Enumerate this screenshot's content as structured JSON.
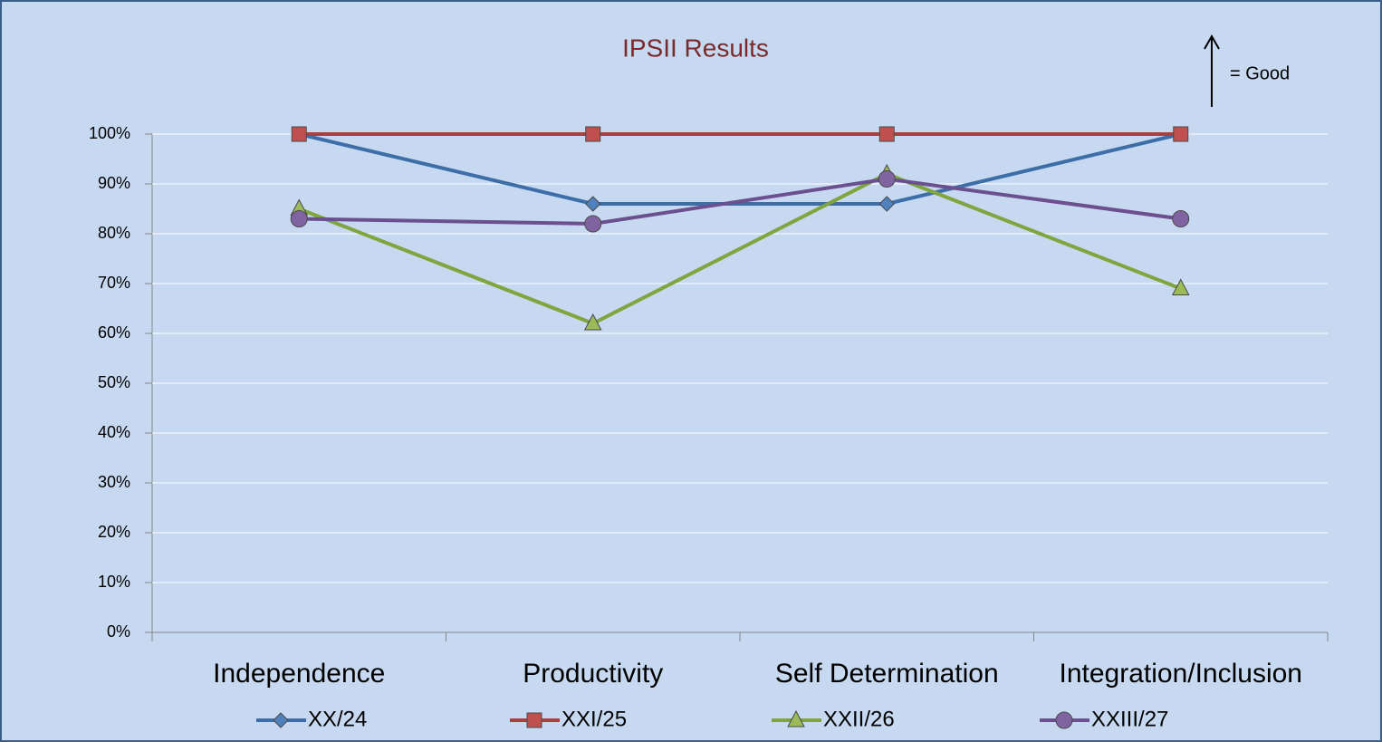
{
  "chart_data": {
    "type": "line",
    "title": "IPSII Results",
    "annotation": "= Good",
    "categories": [
      "Independence",
      "Productivity",
      "Self Determination",
      "Integration/Inclusion"
    ],
    "series": [
      {
        "name": "XX/24",
        "color": "#4f81bd",
        "line_color": "#3d6ea8",
        "marker": "diamond",
        "values": [
          100,
          86,
          86,
          100
        ]
      },
      {
        "name": "XXI/25",
        "color": "#c0504d",
        "line_color": "#a9403d",
        "marker": "square",
        "values": [
          100,
          100,
          100,
          100
        ]
      },
      {
        "name": "XXII/26",
        "color": "#9bbb59",
        "line_color": "#7fa53e",
        "marker": "triangle",
        "values": [
          85,
          62,
          92,
          69
        ]
      },
      {
        "name": "XXIII/27",
        "color": "#8064a2",
        "line_color": "#6c4f8e",
        "marker": "circle",
        "values": [
          83,
          82,
          91,
          83
        ]
      }
    ],
    "ylim": [
      0,
      100
    ],
    "yticks": [
      {
        "value": 0,
        "label": "0%"
      },
      {
        "value": 10,
        "label": "10%"
      },
      {
        "value": 20,
        "label": "20%"
      },
      {
        "value": 30,
        "label": "30%"
      },
      {
        "value": 40,
        "label": "40%"
      },
      {
        "value": 50,
        "label": "50%"
      },
      {
        "value": 60,
        "label": "60%"
      },
      {
        "value": 70,
        "label": "70%"
      },
      {
        "value": 80,
        "label": "80%"
      },
      {
        "value": 90,
        "label": "90%"
      },
      {
        "value": 100,
        "label": "100%"
      }
    ],
    "grid": true,
    "legend": "bottom"
  }
}
